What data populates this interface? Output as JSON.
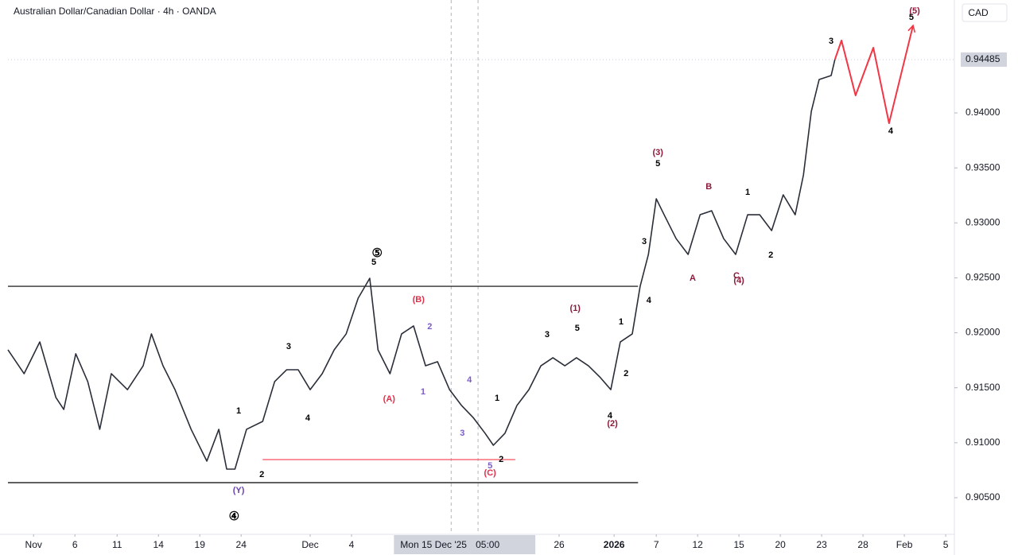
{
  "chart_data": {
    "type": "line",
    "title": "Australian Dollar/Canadian Dollar · 4h · OANDA",
    "currency": "CAD",
    "last_price": {
      "value": 0.94485,
      "label": "0.94485"
    },
    "xlim": [
      -0.62,
      22.27
    ],
    "ylim": [
      0.90167,
      0.95027
    ],
    "xticks": [
      {
        "value": 0,
        "label": "Nov"
      },
      {
        "value": 1,
        "label": "6"
      },
      {
        "value": 2.02,
        "label": "11"
      },
      {
        "value": 3.02,
        "label": "14"
      },
      {
        "value": 4.02,
        "label": "19"
      },
      {
        "value": 5.02,
        "label": "24"
      },
      {
        "value": 6.69,
        "label": "Dec"
      },
      {
        "value": 7.69,
        "label": "4"
      },
      {
        "value": 12.71,
        "label": "26"
      },
      {
        "value": 14.04,
        "label": "2026"
      },
      {
        "value": 15.06,
        "label": "7"
      },
      {
        "value": 16.06,
        "label": "12"
      },
      {
        "value": 17.06,
        "label": "15"
      },
      {
        "value": 18.06,
        "label": "20"
      },
      {
        "value": 19.06,
        "label": "23"
      },
      {
        "value": 20.06,
        "label": "28"
      },
      {
        "value": 21.06,
        "label": "Feb"
      },
      {
        "value": 22.06,
        "label": "5"
      }
    ],
    "yticks": [
      {
        "value": 0.905,
        "label": "0.90500"
      },
      {
        "value": 0.91,
        "label": "0.91000"
      },
      {
        "value": 0.915,
        "label": "0.91500"
      },
      {
        "value": 0.92,
        "label": "0.92000"
      },
      {
        "value": 0.925,
        "label": "0.92500"
      },
      {
        "value": 0.93,
        "label": "0.93000"
      },
      {
        "value": 0.935,
        "label": "0.93500"
      },
      {
        "value": 0.94,
        "label": "0.94000"
      }
    ],
    "crosshair": {
      "x": [
        10.1,
        10.75
      ],
      "date": "Mon 15 Dec '25",
      "time": "05:00"
    },
    "series": [
      {
        "color": "#2a2e39",
        "x": [
          -0.62,
          -0.23,
          0.15,
          0.54,
          0.73,
          1.02,
          1.31,
          1.6,
          1.88,
          2.27,
          2.65,
          2.85,
          3.13,
          3.42,
          3.81,
          4.19,
          4.48,
          4.67,
          4.87,
          5.15,
          5.54,
          5.83,
          6.12,
          6.4,
          6.69,
          6.98,
          7.27,
          7.56,
          7.85,
          8.13,
          8.33,
          8.62,
          8.9,
          9.19,
          9.48,
          9.77,
          10.06,
          10.35,
          10.63,
          10.92,
          11.12,
          11.4,
          11.69,
          11.98,
          12.27,
          12.56,
          12.85,
          13.13,
          13.42,
          13.71,
          13.96,
          14.19,
          14.48,
          14.67,
          14.87,
          15.06,
          15.25,
          15.54,
          15.83,
          16.12,
          16.4,
          16.69,
          16.98,
          17.27,
          17.56,
          17.85,
          18.13,
          18.42,
          18.62,
          18.81,
          19.0,
          19.29,
          19.38
        ],
        "values": [
          0.91845,
          0.91628,
          0.91917,
          0.91411,
          0.91303,
          0.91809,
          0.91556,
          0.91122,
          0.91628,
          0.91483,
          0.917,
          0.9199,
          0.917,
          0.91483,
          0.91122,
          0.90833,
          0.91122,
          0.9076,
          0.9076,
          0.91122,
          0.91194,
          0.91556,
          0.91664,
          0.91664,
          0.91483,
          0.91628,
          0.91845,
          0.9199,
          0.92315,
          0.92496,
          0.91845,
          0.91628,
          0.9199,
          0.92062,
          0.917,
          0.91737,
          0.91483,
          0.91339,
          0.9123,
          0.91086,
          0.90977,
          0.91086,
          0.91339,
          0.91483,
          0.917,
          0.91773,
          0.917,
          0.91773,
          0.917,
          0.91592,
          0.91483,
          0.91917,
          0.9199,
          0.92423,
          0.92713,
          0.93219,
          0.93074,
          0.92857,
          0.92713,
          0.93074,
          0.9311,
          0.92857,
          0.92713,
          0.93074,
          0.93074,
          0.9293,
          0.93255,
          0.93074,
          0.93436,
          0.94014,
          0.94304,
          0.9434,
          0.94485
        ]
      },
      {
        "color": "#f23645",
        "x": [
          19.38,
          19.54,
          19.88,
          20.31,
          20.69,
          21.27
        ],
        "values": [
          0.94485,
          0.94659,
          0.94159,
          0.94593,
          0.93906,
          0.94795
        ]
      }
    ],
    "levels": [
      {
        "value": 0.92423,
        "x": [
          -0.62,
          14.62
        ],
        "color": "#000000"
      },
      {
        "value": 0.90637,
        "x": [
          -0.62,
          14.62
        ],
        "color": "#000000"
      },
      {
        "value": 0.90847,
        "x": [
          5.54,
          11.65
        ],
        "color": "#f7525f"
      }
    ],
    "annotations": [
      {
        "text": "⑤",
        "x": 8.31,
        "y": 0.9272,
        "color": "#000000"
      },
      {
        "text": "5",
        "x": 8.23,
        "y": 0.9264,
        "color": "#000000"
      },
      {
        "text": "3",
        "x": 6.17,
        "y": 0.91874,
        "color": "#000000"
      },
      {
        "text": "4",
        "x": 6.63,
        "y": 0.91223,
        "color": "#000000"
      },
      {
        "text": "1",
        "x": 4.96,
        "y": 0.91288,
        "color": "#000000"
      },
      {
        "text": "2",
        "x": 5.52,
        "y": 0.9071,
        "color": "#000000"
      },
      {
        "text": "(Y)",
        "x": 4.96,
        "y": 0.90565,
        "color": "#6a3fb5"
      },
      {
        "text": "④",
        "x": 4.85,
        "y": 0.90326,
        "color": "#000000"
      },
      {
        "text": "(B)",
        "x": 9.31,
        "y": 0.92301,
        "color": "#e0304a"
      },
      {
        "text": "(A)",
        "x": 8.6,
        "y": 0.91397,
        "color": "#e0304a"
      },
      {
        "text": "2",
        "x": 9.58,
        "y": 0.92055,
        "color": "#7b5cc7"
      },
      {
        "text": "1",
        "x": 9.42,
        "y": 0.91462,
        "color": "#7b5cc7"
      },
      {
        "text": "4",
        "x": 10.54,
        "y": 0.9157,
        "color": "#7b5cc7"
      },
      {
        "text": "3",
        "x": 10.37,
        "y": 0.91086,
        "color": "#7b5cc7"
      },
      {
        "text": "5",
        "x": 11.04,
        "y": 0.90789,
        "color": "#7b5cc7"
      },
      {
        "text": "(C)",
        "x": 11.04,
        "y": 0.90724,
        "color": "#e0304a"
      },
      {
        "text": "1",
        "x": 11.21,
        "y": 0.91404,
        "color": "#000000"
      },
      {
        "text": "2",
        "x": 11.31,
        "y": 0.90847,
        "color": "#000000"
      },
      {
        "text": "3",
        "x": 12.42,
        "y": 0.91982,
        "color": "#000000"
      },
      {
        "text": "5",
        "x": 13.15,
        "y": 0.9204,
        "color": "#000000"
      },
      {
        "text": "(1)",
        "x": 13.1,
        "y": 0.92221,
        "color": "#8b1a3a"
      },
      {
        "text": "4",
        "x": 13.94,
        "y": 0.91245,
        "color": "#000000"
      },
      {
        "text": "(2)",
        "x": 14.0,
        "y": 0.91173,
        "color": "#8b1a3a"
      },
      {
        "text": "2",
        "x": 14.33,
        "y": 0.91628,
        "color": "#000000"
      },
      {
        "text": "1",
        "x": 14.21,
        "y": 0.92098,
        "color": "#000000"
      },
      {
        "text": "4",
        "x": 14.88,
        "y": 0.92293,
        "color": "#000000"
      },
      {
        "text": "3",
        "x": 14.77,
        "y": 0.92828,
        "color": "#000000"
      },
      {
        "text": "5",
        "x": 15.1,
        "y": 0.93537,
        "color": "#000000"
      },
      {
        "text": "(3)",
        "x": 15.1,
        "y": 0.93638,
        "color": "#8b1a3a"
      },
      {
        "text": "A",
        "x": 15.94,
        "y": 0.92496,
        "color": "#8b1a3a"
      },
      {
        "text": "B",
        "x": 16.33,
        "y": 0.93327,
        "color": "#8b1a3a"
      },
      {
        "text": "C",
        "x": 17.0,
        "y": 0.92517,
        "color": "#8b1a3a"
      },
      {
        "text": "(4)",
        "x": 17.06,
        "y": 0.92474,
        "color": "#8b1a3a"
      },
      {
        "text": "1",
        "x": 17.27,
        "y": 0.93277,
        "color": "#000000"
      },
      {
        "text": "2",
        "x": 17.83,
        "y": 0.92706,
        "color": "#000000"
      },
      {
        "text": "3",
        "x": 19.29,
        "y": 0.94651,
        "color": "#000000"
      },
      {
        "text": "4",
        "x": 20.73,
        "y": 0.93834,
        "color": "#000000"
      },
      {
        "text": "5",
        "x": 21.23,
        "y": 0.94868,
        "color": "#000000"
      },
      {
        "text": "(5)",
        "x": 21.31,
        "y": 0.94925,
        "color": "#8b1a3a"
      }
    ]
  }
}
